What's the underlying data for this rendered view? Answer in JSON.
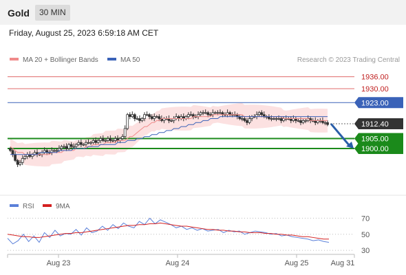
{
  "header": {
    "title": "Gold",
    "timeframe": "30 MIN"
  },
  "date_text": "Friday, August 25, 2023 6:59:18 AM CET",
  "legend": {
    "ma20": "MA 20 + Bollinger Bands",
    "ma50": "MA 50",
    "credit": "Research © 2023 Trading Central",
    "rsi": "RSI",
    "rsi_ma": "9MA"
  },
  "colors": {
    "resistance": "#e06a6a",
    "ma50": "#3a62b8",
    "support": "#1b8a1b",
    "current": "#333333",
    "bollinger_fill": "#fbdcdc",
    "ma20": "#f08a8a",
    "rsi": "#5b80d9",
    "rsi_ma": "#d42020",
    "arrow": "#2a5ea8"
  },
  "chart_data": [
    {
      "type": "candlestick",
      "title": "",
      "ylim": [
        1880,
        1940
      ],
      "x_ticks": [
        "Aug 23",
        "Aug 24",
        "Aug 25",
        "Aug 31"
      ],
      "levels": [
        {
          "name": "resistance-2",
          "value": 1936.0,
          "label": "1936.00",
          "style": "resistance"
        },
        {
          "name": "resistance-1",
          "value": 1930.0,
          "label": "1930.00",
          "style": "resistance"
        },
        {
          "name": "pivot",
          "value": 1923.0,
          "label": "1923.00",
          "style": "ma50"
        },
        {
          "name": "current",
          "value": 1912.4,
          "label": "1912.40",
          "style": "current"
        },
        {
          "name": "support-1",
          "value": 1905.0,
          "label": "1905.00",
          "style": "support"
        },
        {
          "name": "support-2",
          "value": 1900.0,
          "label": "1900.00",
          "style": "support"
        }
      ],
      "close": [
        1899,
        1897,
        1894,
        1892,
        1893,
        1895,
        1896,
        1897,
        1896,
        1897,
        1898,
        1897,
        1897,
        1898,
        1899,
        1898,
        1898,
        1899,
        1899,
        1899,
        1900,
        1901,
        1901,
        1900,
        1902,
        1901,
        1901,
        1902,
        1903,
        1902,
        1902,
        1903,
        1903,
        1903,
        1904,
        1903,
        1904,
        1905,
        1904,
        1904,
        1905,
        1904,
        1904,
        1905,
        1904,
        1905,
        1906,
        1910,
        1917,
        1916,
        1917,
        1915,
        1915,
        1914,
        1915,
        1917,
        1917,
        1916,
        1915,
        1916,
        1916,
        1915,
        1914,
        1915,
        1915,
        1914,
        1914,
        1915,
        1916,
        1915,
        1916,
        1915,
        1916,
        1917,
        1917,
        1916,
        1916,
        1917,
        1918,
        1918,
        1918,
        1917,
        1917,
        1918,
        1918,
        1918,
        1918,
        1917,
        1917,
        1918,
        1917,
        1917,
        1917,
        1916,
        1915,
        1915,
        1914,
        1913,
        1915,
        1916,
        1916,
        1917,
        1918,
        1917,
        1916,
        1916,
        1915,
        1915,
        1915,
        1915,
        1915,
        1914,
        1915,
        1915,
        1915,
        1914,
        1915,
        1914,
        1914,
        1913,
        1914,
        1914,
        1915,
        1914,
        1914,
        1913,
        1914,
        1914,
        1913,
        1913,
        1912
      ],
      "ma20": [
        1901,
        1900,
        1899,
        1898,
        1898,
        1898,
        1897,
        1897,
        1897,
        1897,
        1897,
        1897,
        1897,
        1897,
        1897,
        1897,
        1897,
        1898,
        1898,
        1898,
        1898,
        1898,
        1899,
        1899,
        1899,
        1899,
        1899,
        1900,
        1900,
        1900,
        1900,
        1901,
        1901,
        1901,
        1902,
        1902,
        1902,
        1902,
        1902,
        1903,
        1903,
        1903,
        1903,
        1903,
        1904,
        1904,
        1904,
        1904,
        1905,
        1906,
        1906,
        1907,
        1908,
        1909,
        1910,
        1911,
        1911,
        1912,
        1913,
        1913,
        1914,
        1914,
        1915,
        1915,
        1915,
        1915,
        1915,
        1915,
        1915,
        1915,
        1915,
        1915,
        1915,
        1915,
        1915,
        1916,
        1916,
        1916,
        1916,
        1916,
        1916,
        1916,
        1916,
        1917,
        1917,
        1917,
        1917,
        1917,
        1917,
        1917,
        1917,
        1917,
        1917,
        1917,
        1917,
        1917,
        1916,
        1916,
        1916,
        1916,
        1916,
        1916,
        1916,
        1916,
        1916,
        1916,
        1916,
        1916,
        1916,
        1916,
        1916,
        1916,
        1915,
        1915,
        1915,
        1915,
        1915,
        1915,
        1915,
        1915,
        1915,
        1915,
        1915,
        1914,
        1914,
        1914,
        1914,
        1914,
        1914,
        1914,
        1914
      ],
      "ma50": [
        1897,
        1897,
        1897,
        1897,
        1897,
        1897,
        1897,
        1897,
        1897,
        1897,
        1897,
        1897,
        1898,
        1898,
        1898,
        1898,
        1898,
        1898,
        1898,
        1898,
        1899,
        1899,
        1899,
        1899,
        1899,
        1899,
        1900,
        1900,
        1900,
        1900,
        1900,
        1900,
        1901,
        1901,
        1901,
        1901,
        1901,
        1902,
        1902,
        1902,
        1902,
        1902,
        1902,
        1902,
        1903,
        1903,
        1903,
        1903,
        1904,
        1904,
        1904,
        1904,
        1905,
        1905,
        1905,
        1906,
        1906,
        1906,
        1907,
        1907,
        1907,
        1908,
        1908,
        1908,
        1909,
        1909,
        1909,
        1910,
        1910,
        1910,
        1911,
        1911,
        1911,
        1912,
        1912,
        1912,
        1913,
        1913,
        1913,
        1914,
        1914,
        1914,
        1915,
        1915,
        1915,
        1915,
        1916,
        1916,
        1916,
        1916,
        1916,
        1916,
        1916,
        1916,
        1916,
        1916,
        1916,
        1916,
        1916,
        1916,
        1916,
        1916,
        1916,
        1916,
        1916,
        1916,
        1916,
        1916,
        1916,
        1916,
        1916,
        1916,
        1916,
        1916,
        1916,
        1916,
        1916,
        1916,
        1916,
        1916,
        1916,
        1916,
        1916,
        1916,
        1916,
        1916,
        1916,
        1916,
        1916,
        1916,
        1916
      ],
      "bb_width": 4
    },
    {
      "type": "line",
      "title": "",
      "ylim": [
        25,
        78
      ],
      "y_ticks": [
        30,
        50,
        70
      ],
      "series": [
        {
          "name": "RSI",
          "values": [
            45,
            38,
            42,
            50,
            41,
            48,
            40,
            52,
            46,
            55,
            48,
            51,
            50,
            56,
            49,
            58,
            52,
            54,
            60,
            55,
            62,
            57,
            64,
            60,
            58,
            66,
            62,
            70,
            63,
            68,
            65,
            62,
            58,
            60,
            56,
            58,
            55,
            57,
            54,
            55,
            56,
            52,
            55,
            53,
            54,
            50,
            52,
            54,
            53,
            52,
            50,
            51,
            48,
            49,
            47,
            46,
            45,
            44,
            42,
            43,
            41,
            40
          ]
        },
        {
          "name": "9MA",
          "values": [
            50,
            49,
            48,
            47,
            47,
            46,
            46,
            47,
            48,
            49,
            50,
            51,
            51,
            52,
            52,
            53,
            54,
            55,
            56,
            57,
            58,
            59,
            60,
            61,
            61,
            62,
            62,
            63,
            63,
            64,
            63,
            62,
            61,
            60,
            60,
            59,
            58,
            57,
            56,
            56,
            55,
            55,
            54,
            54,
            53,
            53,
            52,
            52,
            52,
            51,
            51,
            50,
            50,
            49,
            49,
            48,
            47,
            47,
            46,
            45,
            44,
            44
          ]
        }
      ]
    }
  ]
}
